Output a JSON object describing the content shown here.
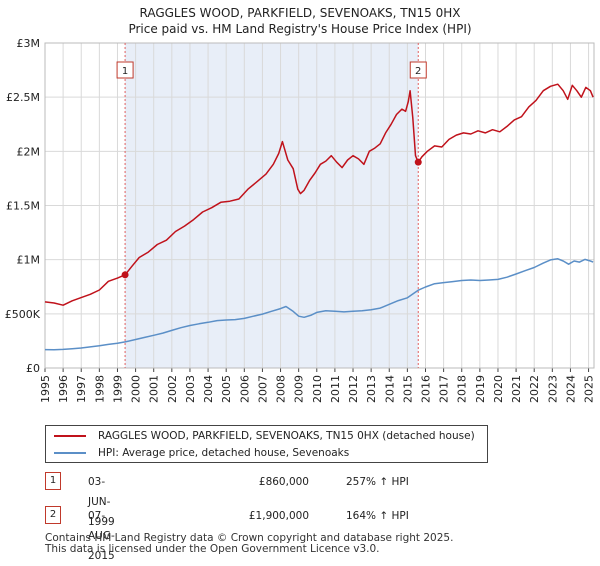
{
  "chart_data": {
    "type": "line",
    "title": "RAGGLES WOOD, PARKFIELD, SEVENOAKS, TN15 0HX",
    "subtitle": "Price paid vs. HM Land Registry's House Price Index (HPI)",
    "xlim": [
      1995,
      2025.3
    ],
    "ylim": [
      0,
      3000000
    ],
    "y_ticks": [
      {
        "value": 0,
        "label": "£0"
      },
      {
        "value": 500000,
        "label": "£500K"
      },
      {
        "value": 1000000,
        "label": "£1M"
      },
      {
        "value": 1500000,
        "label": "£1.5M"
      },
      {
        "value": 2000000,
        "label": "£2M"
      },
      {
        "value": 2500000,
        "label": "£2.5M"
      },
      {
        "value": 3000000,
        "label": "£3M"
      }
    ],
    "x_ticks": [
      "1995",
      "1996",
      "1997",
      "1998",
      "1999",
      "2000",
      "2001",
      "2002",
      "2003",
      "2004",
      "2005",
      "2006",
      "2007",
      "2008",
      "2009",
      "2010",
      "2011",
      "2012",
      "2013",
      "2014",
      "2015",
      "2016",
      "2017",
      "2018",
      "2019",
      "2020",
      "2021",
      "2022",
      "2023",
      "2024",
      "2025"
    ],
    "grid": true,
    "shaded_region": [
      1999.42,
      2015.6
    ],
    "series": [
      {
        "name": "RAGGLES WOOD, PARKFIELD, SEVENOAKS, TN15 0HX (detached house)",
        "color": "#c0121b",
        "points": [
          [
            1995.0,
            610000
          ],
          [
            1995.5,
            600000
          ],
          [
            1996.0,
            580000
          ],
          [
            1996.5,
            620000
          ],
          [
            1997.0,
            650000
          ],
          [
            1997.5,
            680000
          ],
          [
            1998.0,
            720000
          ],
          [
            1998.5,
            800000
          ],
          [
            1999.0,
            830000
          ],
          [
            1999.42,
            860000
          ],
          [
            1999.8,
            940000
          ],
          [
            2000.2,
            1020000
          ],
          [
            2000.7,
            1070000
          ],
          [
            2001.2,
            1140000
          ],
          [
            2001.7,
            1180000
          ],
          [
            2002.2,
            1260000
          ],
          [
            2002.7,
            1310000
          ],
          [
            2003.2,
            1370000
          ],
          [
            2003.7,
            1440000
          ],
          [
            2004.2,
            1480000
          ],
          [
            2004.7,
            1530000
          ],
          [
            2005.2,
            1540000
          ],
          [
            2005.7,
            1560000
          ],
          [
            2006.2,
            1650000
          ],
          [
            2006.7,
            1720000
          ],
          [
            2007.2,
            1790000
          ],
          [
            2007.6,
            1880000
          ],
          [
            2007.9,
            1980000
          ],
          [
            2008.1,
            2090000
          ],
          [
            2008.4,
            1920000
          ],
          [
            2008.7,
            1840000
          ],
          [
            2008.95,
            1650000
          ],
          [
            2009.1,
            1610000
          ],
          [
            2009.3,
            1640000
          ],
          [
            2009.6,
            1730000
          ],
          [
            2009.9,
            1800000
          ],
          [
            2010.2,
            1880000
          ],
          [
            2010.5,
            1910000
          ],
          [
            2010.8,
            1960000
          ],
          [
            2011.1,
            1900000
          ],
          [
            2011.4,
            1850000
          ],
          [
            2011.7,
            1920000
          ],
          [
            2012.0,
            1960000
          ],
          [
            2012.3,
            1930000
          ],
          [
            2012.6,
            1880000
          ],
          [
            2012.9,
            2000000
          ],
          [
            2013.2,
            2030000
          ],
          [
            2013.5,
            2070000
          ],
          [
            2013.8,
            2170000
          ],
          [
            2014.1,
            2250000
          ],
          [
            2014.4,
            2340000
          ],
          [
            2014.7,
            2390000
          ],
          [
            2014.9,
            2370000
          ],
          [
            2015.05,
            2460000
          ],
          [
            2015.15,
            2560000
          ],
          [
            2015.3,
            2310000
          ],
          [
            2015.45,
            1960000
          ],
          [
            2015.6,
            1900000
          ],
          [
            2015.8,
            1950000
          ],
          [
            2016.1,
            2000000
          ],
          [
            2016.5,
            2050000
          ],
          [
            2016.9,
            2040000
          ],
          [
            2017.3,
            2110000
          ],
          [
            2017.7,
            2150000
          ],
          [
            2018.1,
            2170000
          ],
          [
            2018.5,
            2160000
          ],
          [
            2018.9,
            2190000
          ],
          [
            2019.3,
            2170000
          ],
          [
            2019.7,
            2200000
          ],
          [
            2020.1,
            2180000
          ],
          [
            2020.5,
            2230000
          ],
          [
            2020.9,
            2290000
          ],
          [
            2021.3,
            2320000
          ],
          [
            2021.7,
            2410000
          ],
          [
            2022.1,
            2470000
          ],
          [
            2022.5,
            2560000
          ],
          [
            2022.9,
            2600000
          ],
          [
            2023.3,
            2620000
          ],
          [
            2023.6,
            2560000
          ],
          [
            2023.85,
            2480000
          ],
          [
            2024.1,
            2610000
          ],
          [
            2024.35,
            2560000
          ],
          [
            2024.6,
            2500000
          ],
          [
            2024.85,
            2590000
          ],
          [
            2025.1,
            2560000
          ],
          [
            2025.25,
            2500000
          ]
        ]
      },
      {
        "name": "HPI: Average price, detached house, Sevenoaks",
        "color": "#5b8fc7",
        "points": [
          [
            1995.0,
            170000
          ],
          [
            1995.5,
            168000
          ],
          [
            1996.0,
            172000
          ],
          [
            1996.5,
            178000
          ],
          [
            1997.0,
            185000
          ],
          [
            1997.5,
            195000
          ],
          [
            1998.0,
            205000
          ],
          [
            1998.5,
            218000
          ],
          [
            1999.0,
            228000
          ],
          [
            1999.42,
            241000
          ],
          [
            2000.0,
            263000
          ],
          [
            2000.5,
            282000
          ],
          [
            2001.0,
            302000
          ],
          [
            2001.5,
            322000
          ],
          [
            2002.0,
            347000
          ],
          [
            2002.5,
            372000
          ],
          [
            2003.0,
            392000
          ],
          [
            2003.5,
            408000
          ],
          [
            2004.0,
            422000
          ],
          [
            2004.5,
            438000
          ],
          [
            2005.0,
            443000
          ],
          [
            2005.5,
            447000
          ],
          [
            2006.0,
            458000
          ],
          [
            2006.5,
            478000
          ],
          [
            2007.0,
            498000
          ],
          [
            2007.5,
            523000
          ],
          [
            2008.0,
            548000
          ],
          [
            2008.3,
            568000
          ],
          [
            2008.7,
            522000
          ],
          [
            2009.0,
            478000
          ],
          [
            2009.3,
            468000
          ],
          [
            2009.7,
            488000
          ],
          [
            2010.0,
            513000
          ],
          [
            2010.5,
            528000
          ],
          [
            2011.0,
            523000
          ],
          [
            2011.5,
            518000
          ],
          [
            2012.0,
            523000
          ],
          [
            2012.5,
            528000
          ],
          [
            2013.0,
            538000
          ],
          [
            2013.5,
            553000
          ],
          [
            2014.0,
            588000
          ],
          [
            2014.5,
            622000
          ],
          [
            2015.0,
            648000
          ],
          [
            2015.6,
            718000
          ],
          [
            2016.0,
            748000
          ],
          [
            2016.5,
            778000
          ],
          [
            2017.0,
            788000
          ],
          [
            2017.5,
            798000
          ],
          [
            2018.0,
            808000
          ],
          [
            2018.5,
            812000
          ],
          [
            2019.0,
            808000
          ],
          [
            2019.5,
            812000
          ],
          [
            2020.0,
            818000
          ],
          [
            2020.5,
            838000
          ],
          [
            2021.0,
            868000
          ],
          [
            2021.5,
            898000
          ],
          [
            2022.0,
            928000
          ],
          [
            2022.5,
            968000
          ],
          [
            2022.9,
            998000
          ],
          [
            2023.3,
            1008000
          ],
          [
            2023.6,
            988000
          ],
          [
            2023.9,
            958000
          ],
          [
            2024.2,
            988000
          ],
          [
            2024.5,
            978000
          ],
          [
            2024.8,
            1002000
          ],
          [
            2025.1,
            988000
          ],
          [
            2025.25,
            978000
          ]
        ]
      }
    ],
    "sales": [
      {
        "id": "1",
        "year": 1999.42,
        "price": 860000,
        "date": "03-JUN-1999",
        "price_label": "£860,000",
        "hpi_label": "257% ↑ HPI"
      },
      {
        "id": "2",
        "year": 2015.6,
        "price": 1900000,
        "date": "07-AUG-2015",
        "price_label": "£1,900,000",
        "hpi_label": "164% ↑ HPI"
      }
    ]
  },
  "colors": {
    "price_line": "#c0121b",
    "hpi_line": "#5b8fc7",
    "shade": "#e8eef8",
    "grid": "#d9d9d9",
    "marker_dash": "#e06060",
    "box_border": "#c0392b"
  },
  "footer": {
    "line1": "Contains HM Land Registry data © Crown copyright and database right 2025.",
    "line2": "This data is licensed under the Open Government Licence v3.0."
  }
}
